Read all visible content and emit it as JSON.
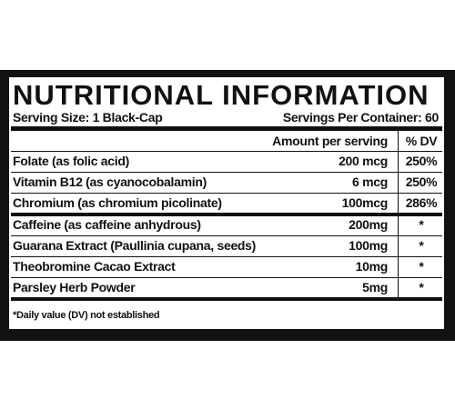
{
  "label": {
    "title": "NUTRITIONAL INFORMATION",
    "serving_size": "Serving Size: 1 Black-Cap",
    "servings_per_container": "Servings Per Container: 60",
    "columns": {
      "amount": "Amount per serving",
      "dv": "% DV"
    },
    "sections": [
      [
        [
          "Folate (as folic acid)",
          "200 mcg",
          "250%"
        ],
        [
          "Vitamin B12 (as cyanocobalamin)",
          "6 mcg",
          "250%"
        ],
        [
          "Chromium (as chromium picolinate)",
          "100mcg",
          "286%"
        ]
      ],
      [
        [
          "Caffeine (as caffeine anhydrous)",
          "200mg",
          "*"
        ],
        [
          "Guarana Extract (Paullinia cupana, seeds)",
          "100mg",
          "*"
        ],
        [
          "Theobromine Cacao Extract",
          "10mg",
          "*"
        ],
        [
          "Parsley Herb Powder",
          "5mg",
          "*"
        ]
      ]
    ],
    "footnote": "*Daily value (DV) not established"
  }
}
